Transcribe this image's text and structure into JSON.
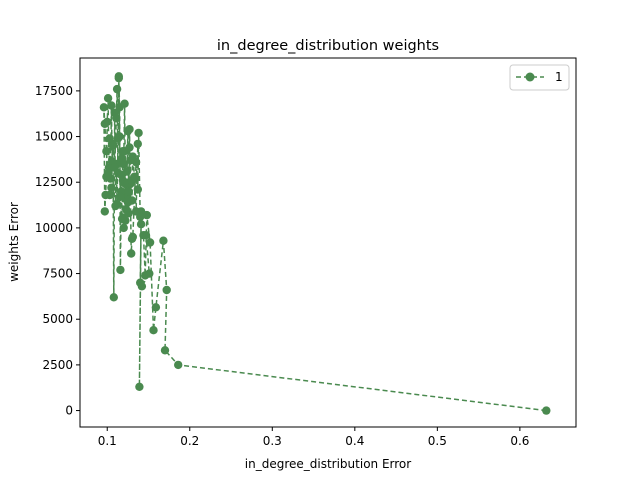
{
  "chart_data": {
    "type": "line",
    "title": "in_degree_distribution weights",
    "xlabel": "in_degree_distribution Error",
    "ylabel": "weights Error",
    "xlim": [
      0.067,
      0.668
    ],
    "ylim": [
      -900,
      19300
    ],
    "xticks": [
      0.1,
      0.2,
      0.3,
      0.4,
      0.5,
      0.6
    ],
    "xtick_labels": [
      "0.1",
      "0.2",
      "0.3",
      "0.4",
      "0.5",
      "0.6"
    ],
    "yticks": [
      0,
      2500,
      5000,
      7500,
      10000,
      12500,
      15000,
      17500
    ],
    "ytick_labels": [
      "0",
      "2500",
      "5000",
      "7500",
      "10000",
      "12500",
      "15000",
      "17500"
    ],
    "legend_position": "top-right",
    "grid": false,
    "series": [
      {
        "name": "1",
        "color": "#4a8a4f",
        "line_style": "dashed",
        "marker": "circle",
        "x": [
          0.632,
          0.186,
          0.17,
          0.172,
          0.168,
          0.159,
          0.156,
          0.152,
          0.148,
          0.146,
          0.144,
          0.147,
          0.151,
          0.142,
          0.14,
          0.141,
          0.139,
          0.141,
          0.14,
          0.138,
          0.137,
          0.135,
          0.134,
          0.131,
          0.13,
          0.129,
          0.128,
          0.127,
          0.126,
          0.125,
          0.124,
          0.122,
          0.121,
          0.12,
          0.119,
          0.118,
          0.117,
          0.116,
          0.115,
          0.114,
          0.113,
          0.112,
          0.111,
          0.11,
          0.109,
          0.108,
          0.107,
          0.106,
          0.105,
          0.104,
          0.103,
          0.102,
          0.101,
          0.1,
          0.099,
          0.098,
          0.097,
          0.096,
          0.097,
          0.099,
          0.101,
          0.103,
          0.105,
          0.107,
          0.109,
          0.111,
          0.112,
          0.113,
          0.114,
          0.115,
          0.116,
          0.117,
          0.118,
          0.119,
          0.12,
          0.121,
          0.122,
          0.123,
          0.124,
          0.125,
          0.126,
          0.127,
          0.128,
          0.129,
          0.13,
          0.131,
          0.133,
          0.135,
          0.137
        ],
        "y": [
          0,
          2500,
          3300,
          6600,
          9300,
          5650,
          4400,
          9200,
          10700,
          7400,
          9600,
          9600,
          7500,
          6800,
          7000,
          10200,
          1300,
          10900,
          10600,
          15200,
          12100,
          13600,
          12700,
          9500,
          9400,
          8600,
          12400,
          15400,
          10800,
          11400,
          11800,
          10400,
          14200,
          10000,
          12600,
          13800,
          12000,
          7700,
          16600,
          18200,
          14900,
          11300,
          13500,
          11200,
          16300,
          6200,
          14600,
          13600,
          16700,
          12700,
          14900,
          13300,
          17100,
          15800,
          12800,
          11800,
          10900,
          16600,
          15700,
          14200,
          13000,
          11800,
          12200,
          14500,
          13300,
          16000,
          17600,
          13000,
          18300,
          15000,
          11700,
          12900,
          10500,
          14200,
          13500,
          16800,
          12400,
          11000,
          13100,
          15300,
          12000,
          14400,
          13700,
          12600,
          11500,
          13900,
          12800,
          10900,
          14600
        ]
      }
    ]
  }
}
